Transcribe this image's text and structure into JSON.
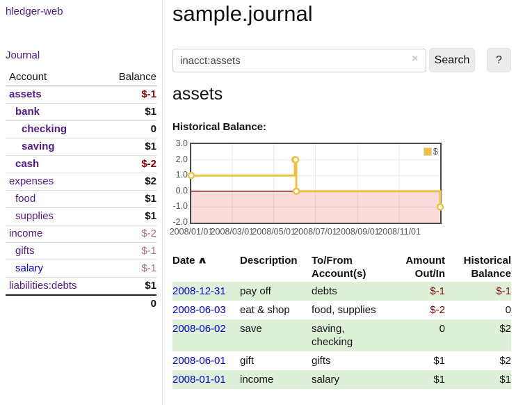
{
  "sidebar": {
    "brand": "hledger-web",
    "journal_link": "Journal",
    "accounts": {
      "col_account": "Account",
      "col_balance": "Balance",
      "rows": [
        {
          "name": "assets",
          "balance": "$-1"
        },
        {
          "name": "bank",
          "balance": "$1"
        },
        {
          "name": "checking",
          "balance": "0"
        },
        {
          "name": "saving",
          "balance": "$1"
        },
        {
          "name": "cash",
          "balance": "$-2"
        },
        {
          "name": "expenses",
          "balance": "$2"
        },
        {
          "name": "food",
          "balance": "$1"
        },
        {
          "name": "supplies",
          "balance": "$1"
        },
        {
          "name": "income",
          "balance": "$-2"
        },
        {
          "name": "gifts",
          "balance": "$-1"
        },
        {
          "name": "salary",
          "balance": "$-1"
        },
        {
          "name": "liabilities:debts",
          "balance": "$1"
        }
      ],
      "total": "0"
    }
  },
  "header": {
    "title": "sample.journal"
  },
  "search": {
    "value": "inacct:assets",
    "clear_icon": "×",
    "search_button": "Search",
    "help_button": "?"
  },
  "account": {
    "heading": "assets",
    "chart_title": "Historical Balance:"
  },
  "chart_data": {
    "type": "line",
    "title": "Historical Balance:",
    "series": [
      {
        "name": "$",
        "color": "#edc240",
        "step": true,
        "points": [
          [
            "2008-01-01",
            1
          ],
          [
            "2008-06-01",
            2
          ],
          [
            "2008-06-02",
            2
          ],
          [
            "2008-06-03",
            0
          ],
          [
            "2008-12-31",
            -1
          ]
        ]
      }
    ],
    "x_range": [
      "2008-01-01",
      "2008-12-31"
    ],
    "ylim": [
      -2,
      3
    ],
    "yticks": [
      "3.0",
      "2.0",
      "1.0",
      "0.0",
      "-1.0",
      "-2.0"
    ],
    "xticks": [
      "2008/01/01",
      "2008/03/01",
      "2008/05/01",
      "2008/07/01",
      "2008/09/01",
      "2008/11/01"
    ],
    "grid": true,
    "legend": [
      {
        "label": "$",
        "color": "#edc240"
      }
    ],
    "legend_position": "top-right",
    "zero_line_color": "#8b1a1a",
    "negative_region_color": "#fadbdb"
  },
  "register": {
    "headers": {
      "date": "Date",
      "sort_indicator": "∧",
      "description": "Description",
      "accounts": "To/From Account(s)",
      "amount": "Amount Out/In",
      "balance": "Historical Balance"
    },
    "rows": [
      {
        "date": "2008-12-31",
        "description": "pay off",
        "accounts": "debts",
        "amount": "$-1",
        "balance": "$-1"
      },
      {
        "date": "2008-06-03",
        "description": "eat & shop",
        "accounts": "food, supplies",
        "amount": "$-2",
        "balance": "0"
      },
      {
        "date": "2008-06-02",
        "description": "save",
        "accounts": "saving, checking",
        "amount": "0",
        "balance": "$2"
      },
      {
        "date": "2008-06-01",
        "description": "gift",
        "accounts": "gifts",
        "amount": "$1",
        "balance": "$2"
      },
      {
        "date": "2008-01-01",
        "description": "income",
        "accounts": "salary",
        "amount": "$1",
        "balance": "$1"
      }
    ]
  }
}
